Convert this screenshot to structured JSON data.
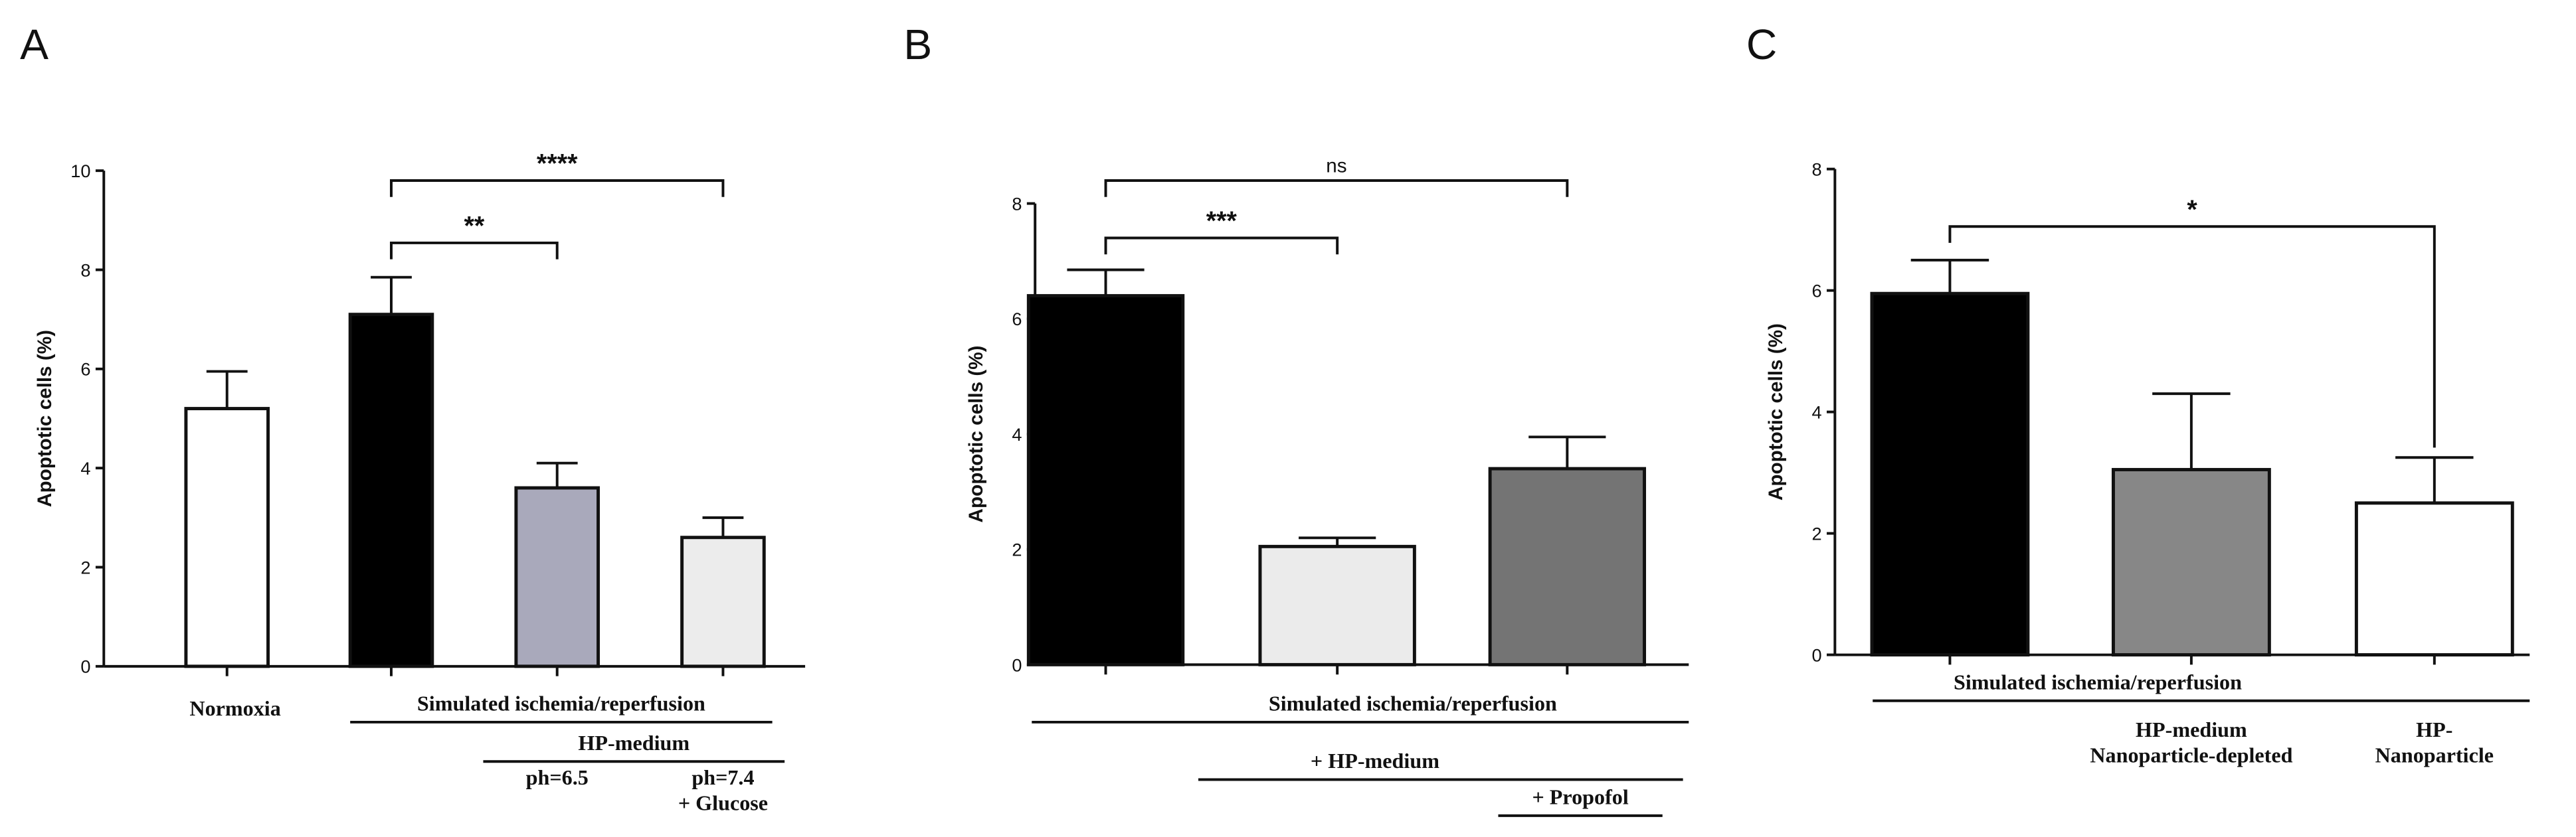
{
  "chart_data": [
    {
      "type": "bar",
      "panel": "A",
      "y_label": "Apoptotic cells (%)",
      "ylim": [
        0,
        10
      ],
      "yticks": [
        0,
        2,
        4,
        6,
        8,
        10
      ],
      "categories": [
        "Normoxia",
        null,
        "ph=6.5",
        "ph=7.4\n+ Glucose"
      ],
      "values": [
        5.2,
        7.1,
        3.6,
        2.6
      ],
      "errors": [
        0.75,
        0.75,
        0.5,
        0.4
      ],
      "colors": [
        "#ffffff",
        "#000000",
        "#a9a9bb",
        "#ececec"
      ],
      "comparisons": [
        {
          "from": 1,
          "to": 2,
          "label": "**"
        },
        {
          "from": 1,
          "to": 3,
          "label": "****"
        }
      ],
      "groups": [
        {
          "label": "Simulated ischemia/reperfusion",
          "from": 1,
          "to": 3
        },
        {
          "label": "HP-medium",
          "from": 2,
          "to": 3
        }
      ]
    },
    {
      "type": "bar",
      "panel": "B",
      "y_label": "Apoptotic cells (%)",
      "ylim": [
        0,
        8
      ],
      "yticks": [
        0,
        2,
        4,
        6,
        8
      ],
      "categories": [
        null,
        null,
        null
      ],
      "values": [
        6.4,
        2.05,
        3.4
      ],
      "errors": [
        0.45,
        0.15,
        0.55
      ],
      "colors": [
        "#000000",
        "#ebebeb",
        "#747474"
      ],
      "comparisons": [
        {
          "from": 0,
          "to": 1,
          "label": "***"
        },
        {
          "from": 0,
          "to": 2,
          "label": "ns"
        }
      ],
      "groups": [
        {
          "label": "Simulated ischemia/reperfusion",
          "from": 0,
          "to": 2
        },
        {
          "label": "+ HP-medium",
          "from": 1,
          "to": 2
        },
        {
          "label": "+ Propofol",
          "from": 2,
          "to": 2
        }
      ]
    },
    {
      "type": "bar",
      "panel": "C",
      "y_label": "Apoptotic cells (%)",
      "ylim": [
        0,
        8
      ],
      "yticks": [
        0,
        2,
        4,
        6,
        8
      ],
      "categories": [
        null,
        "HP-medium\nNanoparticle-depleted",
        "HP-\nNanoparticle"
      ],
      "values": [
        5.95,
        3.05,
        2.5
      ],
      "errors": [
        0.55,
        1.25,
        0.75
      ],
      "colors": [
        "#000000",
        "#878787",
        "#ffffff"
      ],
      "comparisons": [
        {
          "from": 0,
          "to": 2,
          "label": "*"
        }
      ],
      "groups": [
        {
          "label": "Simulated ischemia/reperfusion",
          "from": 0,
          "to": 2
        }
      ]
    }
  ]
}
